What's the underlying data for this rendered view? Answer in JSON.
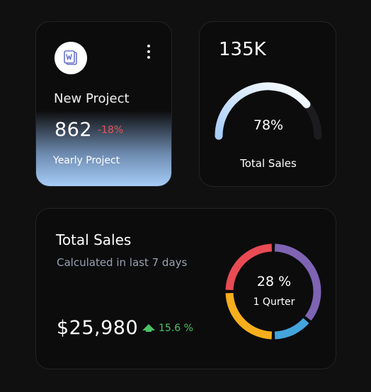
{
  "project_card": {
    "icon": "word-document-icon",
    "menu_icon": "kebab-menu-icon",
    "title": "New Project",
    "value": "862",
    "change": "-18%",
    "subtitle": "Yearly Project",
    "colors": {
      "change": "#e2545a",
      "gradient_bottom": "#a6cdf8"
    }
  },
  "gauge_card": {
    "value": "135K",
    "percent_label": "78%",
    "progress": 0.78,
    "label": "Total Sales",
    "colors": {
      "arc_start": "#a6cdf8",
      "arc_end": "#ffffff",
      "track": "#1c1c1e"
    }
  },
  "total_sales_card": {
    "title": "Total Sales",
    "subtitle": "Calculated in last 7 days",
    "amount": "$25,980",
    "trend_icon": "arrow-up-icon",
    "trend": "15.6 %",
    "donut_percent": "28 %",
    "donut_label": "1 Qurter",
    "colors": {
      "trend": "#4cc264"
    },
    "donut_segments": [
      {
        "color": "#7e64b3",
        "share": 0.36
      },
      {
        "color": "#44a5dc",
        "share": 0.14
      },
      {
        "color": "#f6ae1c",
        "share": 0.25
      },
      {
        "color": "#e84b53",
        "share": 0.25
      }
    ]
  }
}
